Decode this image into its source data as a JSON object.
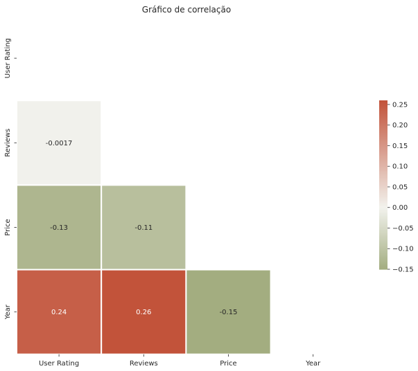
{
  "chart_data": {
    "type": "heatmap",
    "title": "Gráfico de correlação",
    "variables": [
      "User Rating",
      "Reviews",
      "Price",
      "Year"
    ],
    "mask": "upper-triangle-including-diagonal",
    "cells": [
      {
        "row": "Reviews",
        "col": "User Rating",
        "value": -0.0017,
        "label": "-0.0017"
      },
      {
        "row": "Price",
        "col": "User Rating",
        "value": -0.13,
        "label": "-0.13"
      },
      {
        "row": "Price",
        "col": "Reviews",
        "value": -0.11,
        "label": "-0.11"
      },
      {
        "row": "Year",
        "col": "User Rating",
        "value": 0.24,
        "label": "0.24"
      },
      {
        "row": "Year",
        "col": "Reviews",
        "value": 0.26,
        "label": "0.26"
      },
      {
        "row": "Year",
        "col": "Price",
        "value": -0.15,
        "label": "-0.15"
      }
    ],
    "colorbar": {
      "min": -0.15,
      "max": 0.26,
      "center": 0,
      "low_color": "#a3ad80",
      "mid_color": "#f2f2ed",
      "high_color": "#c2533a",
      "ticks": [
        -0.15,
        -0.1,
        -0.05,
        0.0,
        0.05,
        0.1,
        0.15,
        0.2,
        0.25
      ],
      "tick_labels": [
        "−0.15",
        "−0.10",
        "−0.05",
        "0.00",
        "0.05",
        "0.10",
        "0.15",
        "0.20",
        "0.25"
      ]
    },
    "grid": false,
    "cell_border_color": "#ffffff"
  }
}
